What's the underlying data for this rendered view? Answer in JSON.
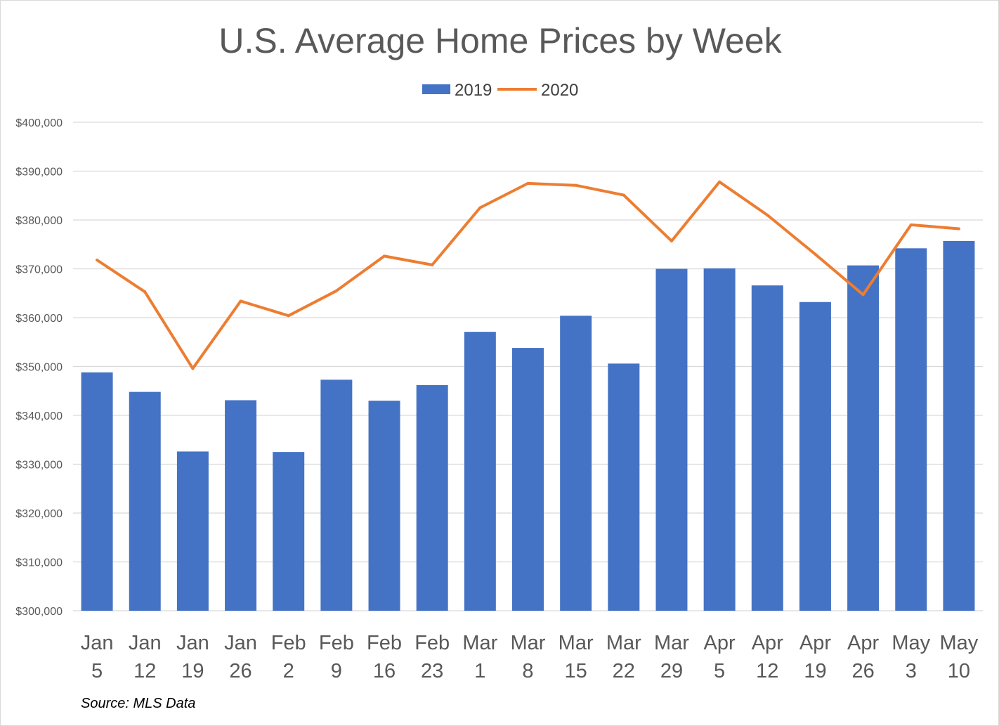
{
  "chart_data": {
    "type": "bar",
    "title": "U.S. Average Home Prices by Week",
    "source": "Source: MLS Data",
    "categories": [
      [
        "Jan",
        "5"
      ],
      [
        "Jan",
        "12"
      ],
      [
        "Jan",
        "19"
      ],
      [
        "Jan",
        "26"
      ],
      [
        "Feb",
        "2"
      ],
      [
        "Feb",
        "9"
      ],
      [
        "Feb",
        "16"
      ],
      [
        "Feb",
        "23"
      ],
      [
        "Mar",
        "1"
      ],
      [
        "Mar",
        "8"
      ],
      [
        "Mar",
        "15"
      ],
      [
        "Mar",
        "22"
      ],
      [
        "Mar",
        "29"
      ],
      [
        "Apr",
        "5"
      ],
      [
        "Apr",
        "12"
      ],
      [
        "Apr",
        "19"
      ],
      [
        "Apr",
        "26"
      ],
      [
        "May",
        "3"
      ],
      [
        "May",
        "10"
      ]
    ],
    "series": [
      {
        "name": "2019",
        "kind": "bar",
        "color": "#4472c4",
        "values": [
          348800,
          344800,
          332600,
          343100,
          332500,
          347300,
          343000,
          346200,
          357100,
          353800,
          360400,
          350600,
          370000,
          370100,
          366600,
          363200,
          370700,
          374200,
          375700
        ]
      },
      {
        "name": "2020",
        "kind": "line",
        "color": "#ed7d31",
        "values": [
          371800,
          365300,
          349600,
          363400,
          360400,
          365500,
          372600,
          370800,
          382500,
          387500,
          387100,
          385100,
          375700,
          387800,
          381000,
          373000,
          364700,
          379000,
          378200
        ]
      }
    ],
    "ylim": [
      300000,
      400000
    ],
    "yticks": [
      300000,
      310000,
      320000,
      330000,
      340000,
      350000,
      360000,
      370000,
      380000,
      390000,
      400000
    ],
    "ytick_labels": [
      "$300,000",
      "$310,000",
      "$320,000",
      "$330,000",
      "$340,000",
      "$350,000",
      "$360,000",
      "$370,000",
      "$380,000",
      "$390,000",
      "$400,000"
    ],
    "xlabel": "",
    "ylabel": "",
    "grid": true,
    "legend_position": "top-center"
  }
}
